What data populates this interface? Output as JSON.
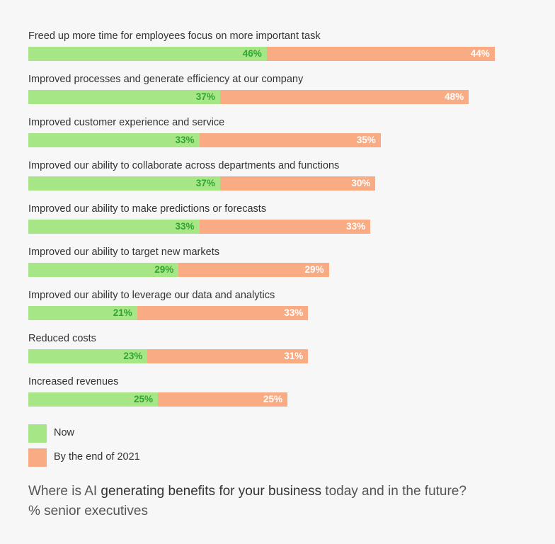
{
  "colors": {
    "now": "#a7e687",
    "future": "#f9ab83",
    "now_label": "#2fa52f",
    "future_label": "#ffffff"
  },
  "chart_data": {
    "type": "bar",
    "orientation": "horizontal",
    "stacked": true,
    "categories": [
      "Freed up more time for employees focus on more important task",
      "Improved processes and generate efficiency at our company",
      "Improved customer experience and service",
      "Improved our ability to collaborate across departments and functions",
      "Improved our ability to make predictions or forecasts",
      "Improved our ability to target new markets",
      "Improved our ability to leverage our data and analytics",
      "Reduced costs",
      "Increased revenues"
    ],
    "series": [
      {
        "name": "Now",
        "values": [
          46,
          37,
          33,
          37,
          33,
          29,
          21,
          23,
          25
        ]
      },
      {
        "name": "By the end of 2021",
        "values": [
          44,
          48,
          35,
          30,
          33,
          29,
          33,
          31,
          25
        ]
      }
    ],
    "value_suffix": "%",
    "legend_position": "bottom-left",
    "grid": false
  },
  "legend": {
    "now": "Now",
    "future": "By the end of 2021"
  },
  "caption": {
    "part1": "Where is AI ",
    "part2": "generating benefits for your business",
    "part3": " today and in the future? % senior executives"
  }
}
